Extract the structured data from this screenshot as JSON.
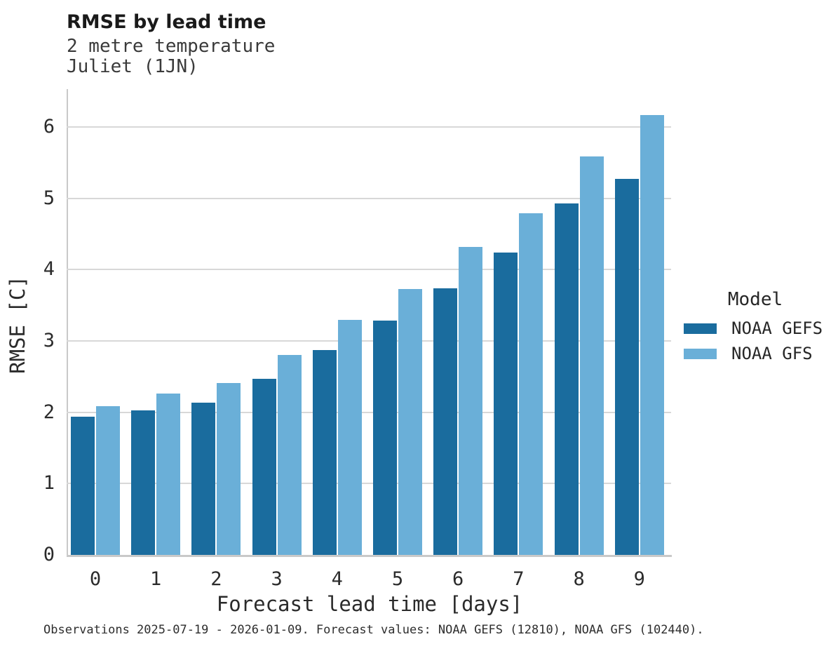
{
  "header": {
    "title": "RMSE by lead time",
    "subtitle1": "2 metre temperature",
    "subtitle2": "Juliet (1JN)"
  },
  "chart_data": {
    "type": "bar",
    "title": "RMSE by lead time",
    "subtitle": [
      "2 metre temperature",
      "Juliet (1JN)"
    ],
    "categories": [
      "0",
      "1",
      "2",
      "3",
      "4",
      "5",
      "6",
      "7",
      "8",
      "9"
    ],
    "series": [
      {
        "name": "NOAA GEFS",
        "color": "#1A6C9E",
        "values": [
          1.94,
          2.03,
          2.13,
          2.47,
          2.87,
          3.28,
          3.74,
          4.24,
          4.93,
          5.27
        ]
      },
      {
        "name": "NOAA GFS",
        "color": "#6AAFD8",
        "values": [
          2.08,
          2.26,
          2.41,
          2.8,
          3.29,
          3.73,
          4.32,
          4.79,
          5.59,
          6.17
        ]
      }
    ],
    "xlabel": "Forecast lead time [days]",
    "ylabel": "RMSE [C]",
    "ylim": [
      0,
      6.53
    ],
    "yticks": [
      0,
      1,
      2,
      3,
      4,
      5,
      6
    ],
    "grid": true,
    "legend": {
      "title": "Model",
      "position": "right-middle"
    }
  },
  "caption": "Observations 2025-07-19 - 2026-01-09. Forecast values: NOAA GEFS (12810), NOAA GFS (102440)."
}
